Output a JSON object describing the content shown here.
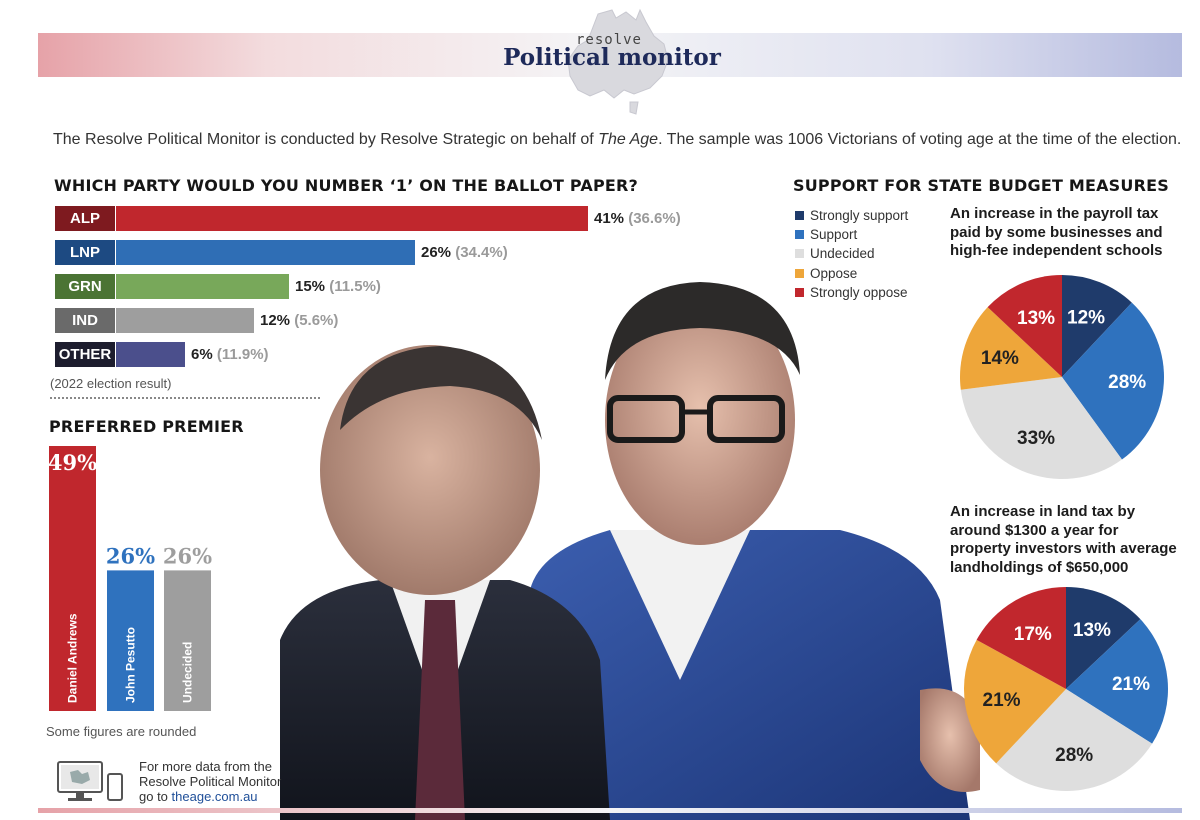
{
  "header": {
    "brand_small": "resolve",
    "brand_big": "Political monitor"
  },
  "intro": {
    "part1": "The Resolve Political Monitor is conducted by Resolve Strategic on behalf of ",
    "publication": "The Age",
    "part2": ". The sample was 1006 Victorians of voting age at the time of the election."
  },
  "colors": {
    "alp": "#c0272d",
    "lnp": "#2f6eb5",
    "grn": "#78a85a",
    "ind": "#9e9e9e",
    "other": "#4b4f8c",
    "strongly_support": "#1f3b6b",
    "support": "#2f72be",
    "undecided": "#dedede",
    "oppose": "#eea63a",
    "strongly_oppose": "#c1272d"
  },
  "chart_data": [
    {
      "type": "bar",
      "title": "WHICH PARTY WOULD YOU NUMBER ‘1’ ON THE BALLOT PAPER?",
      "categories": [
        "ALP",
        "LNP",
        "GRN",
        "IND",
        "OTHER"
      ],
      "series": [
        {
          "values": [
            41,
            26,
            15,
            12,
            6
          ]
        },
        {
          "name": "(2022 election result)",
          "values": [
            36.6,
            34.4,
            11.5,
            5.6,
            11.9
          ]
        }
      ],
      "value_labels": [
        "41%",
        "26%",
        "15%",
        "12%",
        "6%"
      ],
      "prev_labels": [
        "(36.6%)",
        "(34.4%)",
        "(11.5%)",
        "(5.6%)",
        "(11.9%)"
      ],
      "note": "(2022 election result)"
    },
    {
      "type": "bar",
      "title": "PREFERRED PREMIER",
      "categories": [
        "Daniel Andrews",
        "John Pesutto",
        "Undecided"
      ],
      "values": [
        49,
        26,
        26
      ],
      "value_labels": [
        "49%",
        "26%",
        "26%"
      ],
      "colors": [
        "#c0272d",
        "#2f72be",
        "#9e9e9e"
      ]
    },
    {
      "type": "pie",
      "title": "SUPPORT FOR STATE BUDGET MEASURES",
      "subtitle": "An increase in the payroll tax paid by some businesses and high-fee independent schools",
      "categories": [
        "Strongly support",
        "Support",
        "Undecided",
        "Oppose",
        "Strongly oppose"
      ],
      "values": [
        12,
        28,
        33,
        14,
        13
      ],
      "value_labels": [
        "12%",
        "28%",
        "33%",
        "14%",
        "13%"
      ]
    },
    {
      "type": "pie",
      "subtitle": "An increase in land tax by around $1300 a year for property investors with average landholdings of $650,000",
      "categories": [
        "Strongly support",
        "Support",
        "Undecided",
        "Oppose",
        "Strongly oppose"
      ],
      "values": [
        13,
        21,
        28,
        21,
        17
      ],
      "value_labels": [
        "13%",
        "21%",
        "28%",
        "21%",
        "17%"
      ]
    }
  ],
  "legend": [
    "Strongly support",
    "Support",
    "Undecided",
    "Oppose",
    "Strongly oppose"
  ],
  "q1_title_lines": [
    "An increase in the payroll tax",
    "paid by some businesses and",
    "high-fee independent schools"
  ],
  "q2_title_lines": [
    "An increase in land tax by",
    "around $1300 a year for",
    "property investors with average",
    "landholdings of $650,000"
  ],
  "footnote": "Some figures are rounded",
  "more_data": {
    "line1": "For more data from the",
    "line2": "Resolve Political Monitor",
    "line3_prefix": "go to ",
    "link": "theage.com.au"
  }
}
